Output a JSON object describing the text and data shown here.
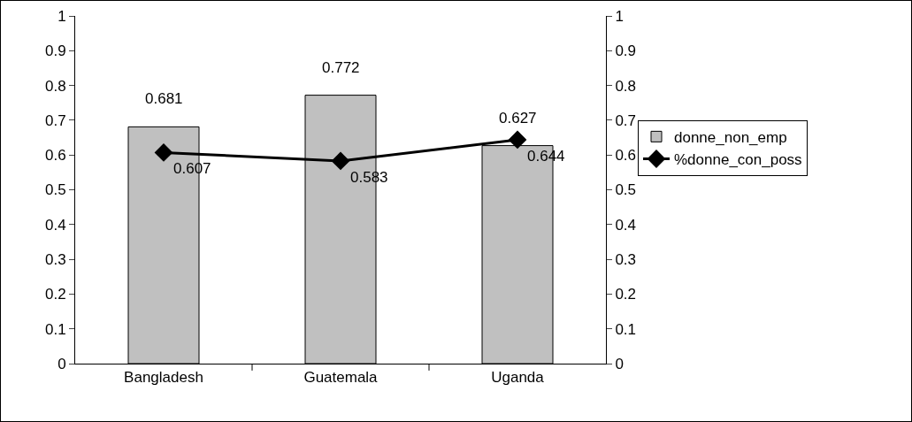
{
  "chart_data": {
    "type": "bar",
    "categories": [
      "Bangladesh",
      "Guatemala",
      "Uganda"
    ],
    "series": [
      {
        "name": "donne_non_emp",
        "color": "#c0c0c0",
        "values": [
          0.681,
          0.772,
          0.627
        ]
      },
      {
        "name": "%donne_con_poss",
        "type": "line",
        "axis": "y2",
        "color": "#000000",
        "values": [
          0.607,
          0.583,
          0.644
        ],
        "marker": "diamond",
        "line_style": "solid"
      }
    ],
    "ylim": [
      0,
      1
    ],
    "yticks": [
      0,
      0.1,
      0.2,
      0.3,
      0.4,
      0.5,
      0.6,
      0.7,
      0.8,
      0.9,
      1
    ],
    "y2lim": [
      0,
      1
    ],
    "y2ticks": [
      0,
      0.1,
      0.2,
      0.3,
      0.4,
      0.5,
      0.6,
      0.7,
      0.8,
      0.9,
      1
    ],
    "data_labels": true,
    "grid": false,
    "legend": "right"
  }
}
